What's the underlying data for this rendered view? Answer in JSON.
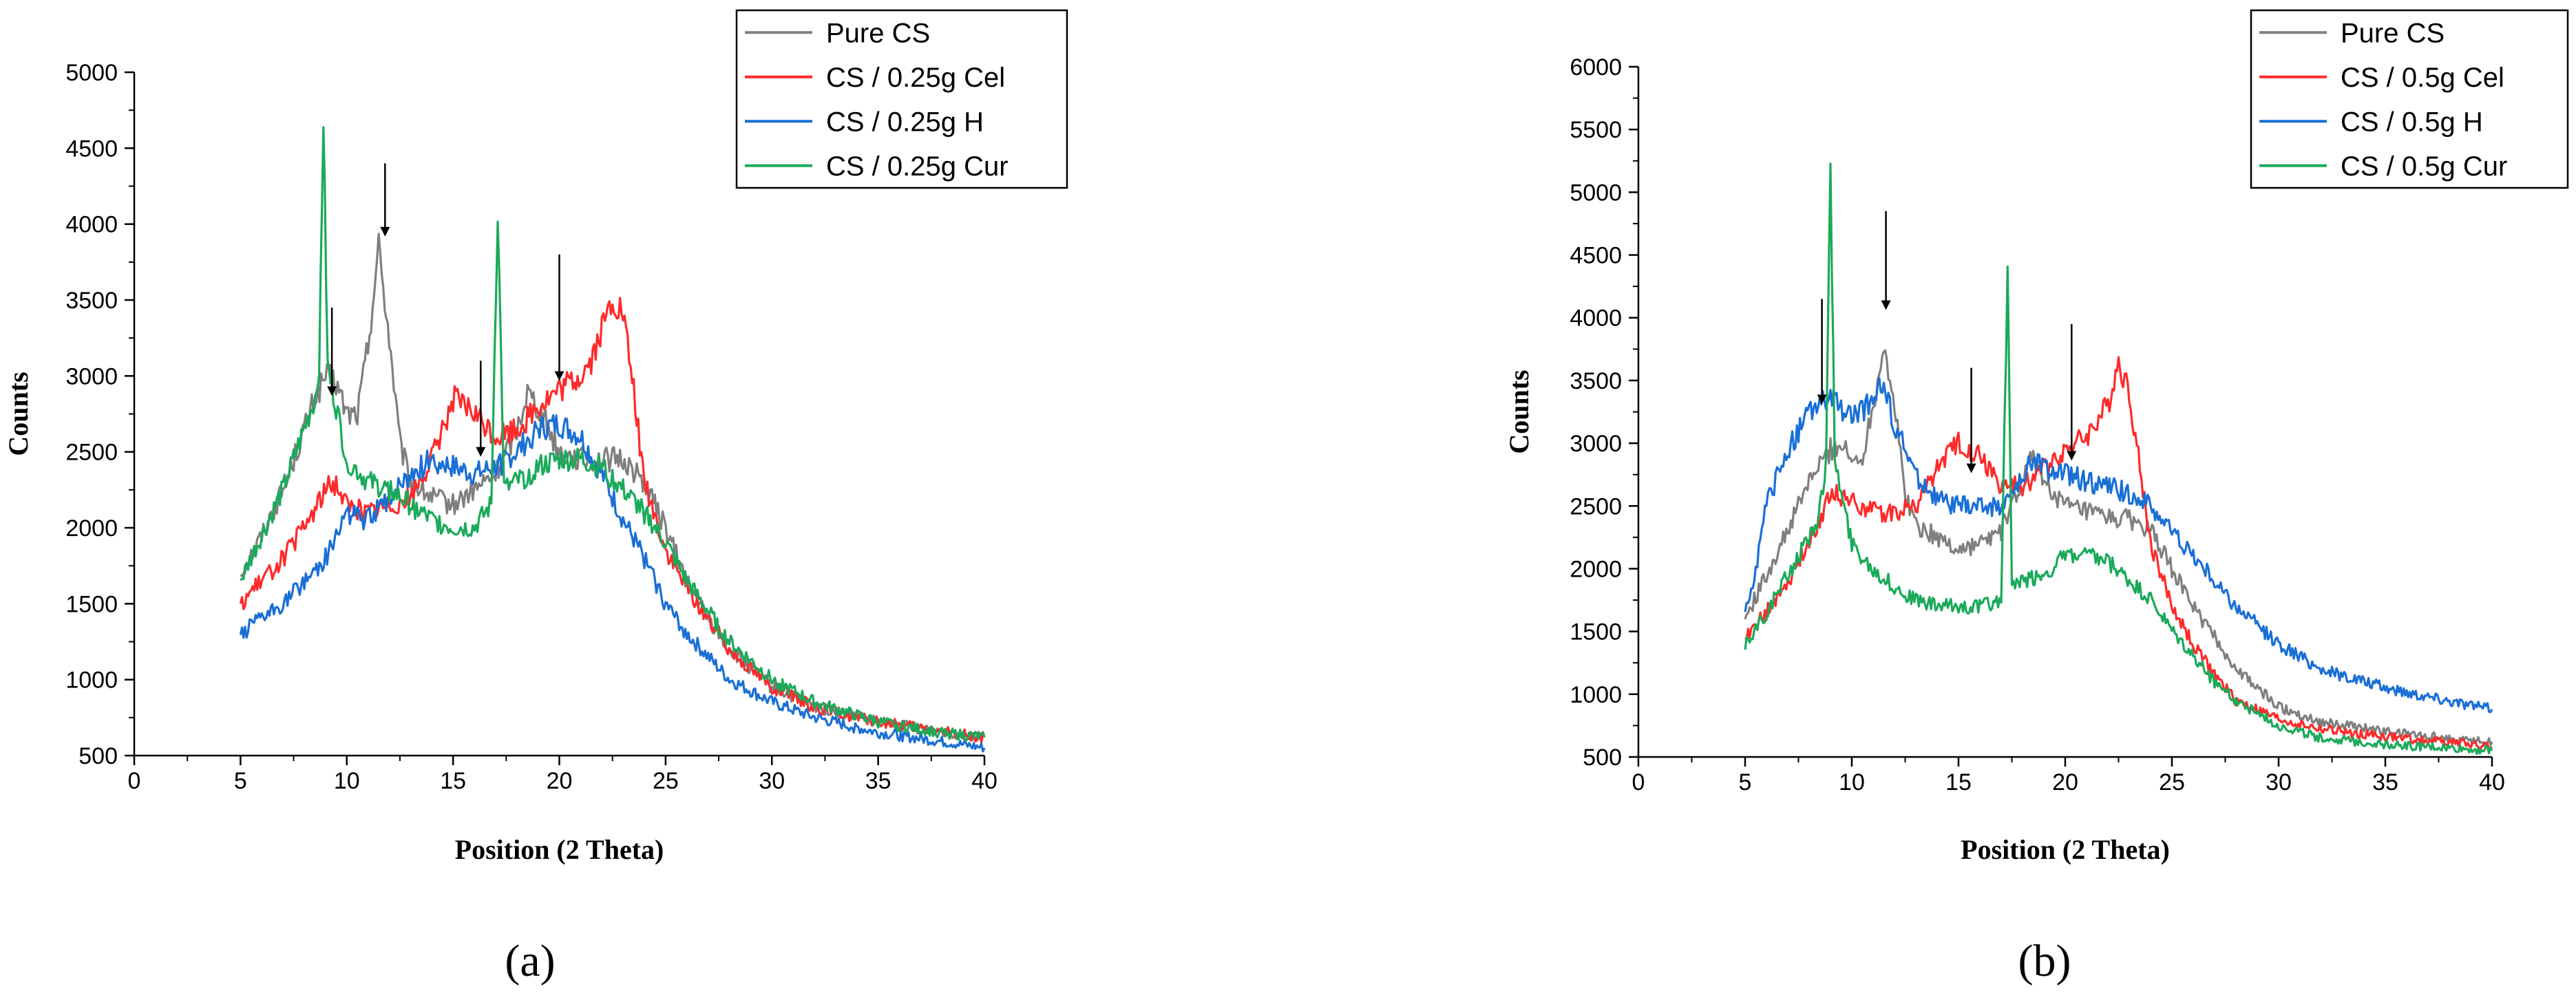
{
  "chart_data": [
    {
      "type": "line",
      "panel_label": "(a)",
      "xlabel": "Position (2 Theta)",
      "ylabel": "Counts",
      "xlim": [
        0,
        40
      ],
      "ylim": [
        500,
        5000
      ],
      "xticks": [
        0,
        5,
        10,
        15,
        20,
        25,
        30,
        35,
        40
      ],
      "yticks": [
        500,
        1000,
        1500,
        2000,
        2500,
        3000,
        3500,
        4000,
        4500,
        5000
      ],
      "legend_position": "top-right",
      "series": [
        {
          "name": "Pure CS",
          "color": "#7f7f7f",
          "x": [
            5,
            6,
            7,
            8,
            8.5,
            9,
            9.5,
            10,
            10.5,
            11,
            11.5,
            12,
            12.5,
            13,
            14,
            15,
            16,
            17,
            18,
            18.5,
            19,
            20,
            21,
            22,
            23,
            24,
            25,
            26,
            27,
            28,
            30,
            32,
            35,
            38,
            40
          ],
          "y": [
            1700,
            1950,
            2250,
            2650,
            2850,
            3000,
            2950,
            2750,
            2750,
            3200,
            3850,
            3250,
            2550,
            2300,
            2200,
            2150,
            2250,
            2350,
            2650,
            2900,
            2800,
            2500,
            2450,
            2450,
            2450,
            2300,
            2000,
            1650,
            1400,
            1200,
            950,
            820,
            720,
            660,
            620
          ]
        },
        {
          "name": "CS / 0.25g Cel",
          "color": "#ff2a2a",
          "x": [
            5,
            6,
            7,
            8,
            9,
            9.5,
            10,
            11,
            12,
            13,
            14,
            15,
            16,
            17,
            18,
            19,
            20,
            21,
            21.5,
            22,
            22.5,
            23,
            23.5,
            24,
            25,
            26,
            27,
            28,
            30,
            32,
            35,
            38,
            40
          ],
          "y": [
            1500,
            1650,
            1800,
            2000,
            2250,
            2300,
            2150,
            2100,
            2150,
            2200,
            2450,
            2850,
            2750,
            2600,
            2650,
            2800,
            2900,
            3000,
            3100,
            3300,
            3500,
            3400,
            2900,
            2300,
            1850,
            1600,
            1400,
            1200,
            950,
            820,
            720,
            660,
            620
          ]
        },
        {
          "name": "CS / 0.25g H",
          "color": "#1a6fd6",
          "x": [
            5,
            6,
            7,
            8,
            9,
            10,
            11,
            12,
            13,
            14,
            15,
            16,
            17,
            18,
            19,
            20,
            21,
            22,
            23,
            24,
            25,
            26,
            27,
            28,
            30,
            32,
            35,
            38,
            40
          ],
          "y": [
            1300,
            1400,
            1500,
            1650,
            1800,
            2100,
            2050,
            2200,
            2350,
            2450,
            2400,
            2350,
            2400,
            2500,
            2650,
            2680,
            2600,
            2350,
            2050,
            1800,
            1500,
            1300,
            1150,
            1000,
            850,
            750,
            650,
            590,
            550
          ]
        },
        {
          "name": "CS / 0.25g Cur",
          "color": "#1aaa5a",
          "x": [
            5,
            6,
            7,
            7.5,
            8,
            8.5,
            8.7,
            8.9,
            9.1,
            9.5,
            10,
            11,
            12,
            13,
            14,
            15,
            16,
            16.8,
            17.1,
            17.4,
            18,
            19,
            20,
            21,
            22,
            23,
            24,
            25,
            26,
            27,
            28,
            30,
            32,
            35,
            38,
            40
          ],
          "y": [
            1650,
            1950,
            2250,
            2450,
            2650,
            2850,
            3100,
            4700,
            3050,
            2800,
            2450,
            2300,
            2250,
            2150,
            2050,
            2000,
            2000,
            2150,
            4100,
            2250,
            2300,
            2400,
            2450,
            2450,
            2400,
            2250,
            2100,
            1900,
            1650,
            1450,
            1250,
            1000,
            850,
            720,
            650,
            620
          ]
        }
      ],
      "annotations": [
        {
          "type": "arrow",
          "x": 9.3,
          "y_from": 3450,
          "y_to": 2900
        },
        {
          "type": "arrow",
          "x": 11.8,
          "y_from": 4400,
          "y_to": 3950
        },
        {
          "type": "arrow",
          "x": 16.3,
          "y_from": 3100,
          "y_to": 2500
        },
        {
          "type": "arrow",
          "x": 20.0,
          "y_from": 3800,
          "y_to": 3000
        }
      ]
    },
    {
      "type": "line",
      "panel_label": "(b)",
      "xlabel": "Position (2 Theta)",
      "ylabel": "Counts",
      "xlim": [
        0,
        40
      ],
      "ylim": [
        500,
        6000
      ],
      "xticks": [
        0,
        5,
        10,
        15,
        20,
        25,
        30,
        35,
        40
      ],
      "yticks": [
        500,
        1000,
        1500,
        2000,
        2500,
        3000,
        3500,
        4000,
        4500,
        5000,
        5500,
        6000
      ],
      "legend_position": "top-right",
      "series": [
        {
          "name": "Pure CS",
          "color": "#7f7f7f",
          "x": [
            5,
            6,
            7,
            8,
            9,
            9.5,
            10,
            10.5,
            11,
            11.5,
            12,
            12.5,
            13,
            14,
            15,
            16,
            17,
            18,
            18.5,
            19,
            20,
            21,
            22,
            23,
            24,
            25,
            26,
            27,
            28,
            30,
            32,
            35,
            38,
            40
          ],
          "y": [
            1600,
            1950,
            2300,
            2700,
            2950,
            3000,
            2850,
            2900,
            3300,
            3800,
            3300,
            2600,
            2350,
            2250,
            2150,
            2200,
            2300,
            2700,
            2900,
            2700,
            2500,
            2450,
            2400,
            2400,
            2300,
            2000,
            1700,
            1450,
            1200,
            900,
            780,
            700,
            650,
            620
          ]
        },
        {
          "name": "CS / 0.5g Cel",
          "color": "#ff2a2a",
          "x": [
            5,
            6,
            7,
            8,
            9,
            10,
            11,
            12,
            13,
            14,
            15,
            16,
            17,
            18,
            19,
            20,
            21,
            22,
            22.5,
            23,
            23.5,
            24,
            25,
            26,
            27,
            28,
            30,
            32,
            35,
            38,
            40
          ],
          "y": [
            1450,
            1650,
            1900,
            2200,
            2600,
            2550,
            2450,
            2450,
            2500,
            2800,
            3000,
            2900,
            2650,
            2650,
            2800,
            2950,
            3050,
            3300,
            3650,
            3400,
            2800,
            2200,
            1700,
            1400,
            1150,
            950,
            800,
            720,
            660,
            620,
            580
          ]
        },
        {
          "name": "CS / 0.5g H",
          "color": "#1a6fd6",
          "x": [
            5,
            5.5,
            6,
            7,
            8,
            8.5,
            9,
            10,
            10.5,
            11,
            11.5,
            12,
            13,
            14,
            15,
            16,
            17,
            18,
            18.5,
            19,
            20,
            21,
            22,
            23,
            24,
            25,
            26,
            27,
            28,
            30,
            32,
            35,
            38,
            40
          ],
          "y": [
            1650,
            2000,
            2500,
            2950,
            3250,
            3300,
            3350,
            3200,
            3250,
            3400,
            3450,
            3150,
            2750,
            2550,
            2500,
            2500,
            2500,
            2700,
            2900,
            2800,
            2750,
            2700,
            2650,
            2600,
            2500,
            2300,
            2100,
            1900,
            1700,
            1400,
            1200,
            1050,
            950,
            880
          ]
        },
        {
          "name": "CS / 0.5g Cur",
          "color": "#1aaa5a",
          "x": [
            5,
            6,
            7,
            8,
            8.5,
            8.8,
            9,
            9.2,
            9.5,
            10,
            11,
            12,
            13,
            14,
            15,
            16,
            17,
            17.3,
            17.5,
            17.8,
            18,
            19,
            20,
            21,
            22,
            23,
            24,
            25,
            26,
            27,
            28,
            30,
            32,
            35,
            38,
            40
          ],
          "y": [
            1400,
            1650,
            1950,
            2250,
            2450,
            2900,
            5200,
            2900,
            2600,
            2200,
            2000,
            1850,
            1750,
            1700,
            1700,
            1700,
            1750,
            4400,
            1900,
            1850,
            1900,
            1950,
            2100,
            2100,
            2050,
            1900,
            1750,
            1500,
            1300,
            1100,
            950,
            750,
            650,
            600,
            570,
            550
          ]
        }
      ],
      "annotations": [
        {
          "type": "arrow",
          "x": 8.6,
          "y_from": 4150,
          "y_to": 3350
        },
        {
          "type": "arrow",
          "x": 11.6,
          "y_from": 4850,
          "y_to": 4100
        },
        {
          "type": "arrow",
          "x": 15.6,
          "y_from": 3600,
          "y_to": 2800
        },
        {
          "type": "arrow",
          "x": 20.3,
          "y_from": 3950,
          "y_to": 2900
        }
      ]
    }
  ]
}
